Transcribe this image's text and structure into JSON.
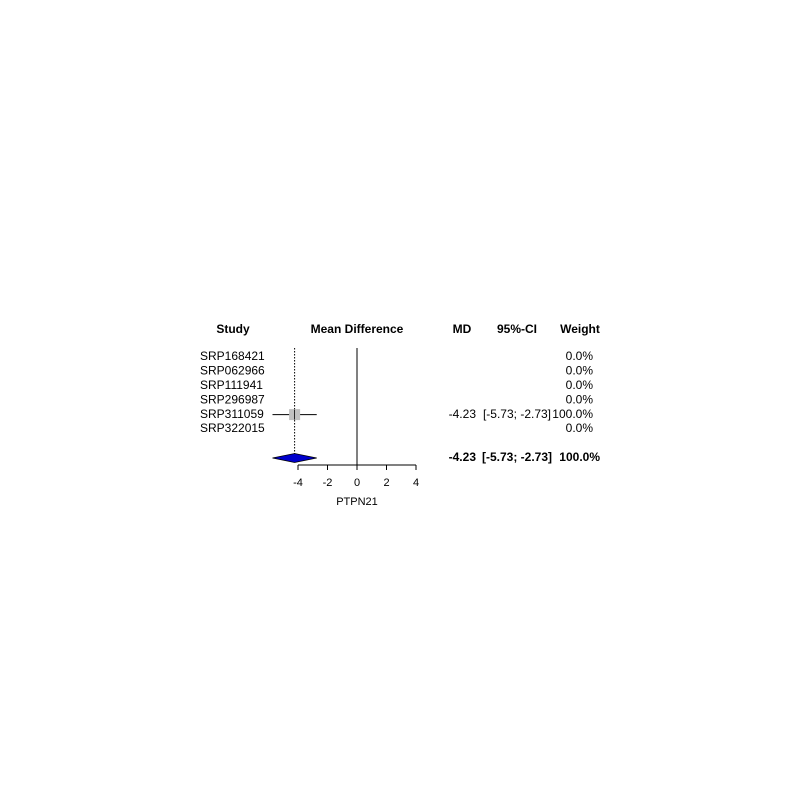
{
  "headers": {
    "study": "Study",
    "effect": "Mean Difference",
    "md": "MD",
    "ci": "95%-CI",
    "weight": "Weight"
  },
  "chart_data": {
    "type": "forest",
    "xlabel": "PTPN21",
    "xlim": [
      -5.5,
      4
    ],
    "xticks": [
      -4,
      -2,
      0,
      2,
      4
    ],
    "xtick_labels": [
      "-4",
      "-2",
      "0",
      "2",
      "4"
    ],
    "reference_line": 0,
    "studies": [
      {
        "name": "SRP168421",
        "md": null,
        "lower": null,
        "upper": null,
        "md_label": "",
        "ci_label": "",
        "weight_label": "0.0%"
      },
      {
        "name": "SRP062966",
        "md": null,
        "lower": null,
        "upper": null,
        "md_label": "",
        "ci_label": "",
        "weight_label": "0.0%"
      },
      {
        "name": "SRP111941",
        "md": null,
        "lower": null,
        "upper": null,
        "md_label": "",
        "ci_label": "",
        "weight_label": "0.0%"
      },
      {
        "name": "SRP296987",
        "md": null,
        "lower": null,
        "upper": null,
        "md_label": "",
        "ci_label": "",
        "weight_label": "0.0%"
      },
      {
        "name": "SRP311059",
        "md": -4.23,
        "lower": -5.73,
        "upper": -2.73,
        "md_label": "-4.23",
        "ci_label": "[-5.73; -2.73]",
        "weight_label": "100.0%"
      },
      {
        "name": "SRP322015",
        "md": null,
        "lower": null,
        "upper": null,
        "md_label": "",
        "ci_label": "",
        "weight_label": "0.0%"
      }
    ],
    "pooled": {
      "md": -4.23,
      "lower": -5.73,
      "upper": -2.73,
      "md_label": "-4.23",
      "ci_label": "[-5.73; -2.73]",
      "weight_label": "100.0%"
    },
    "colors": {
      "diamond_fill": "#0000cc",
      "square_fill": "#c0c0c0"
    }
  }
}
